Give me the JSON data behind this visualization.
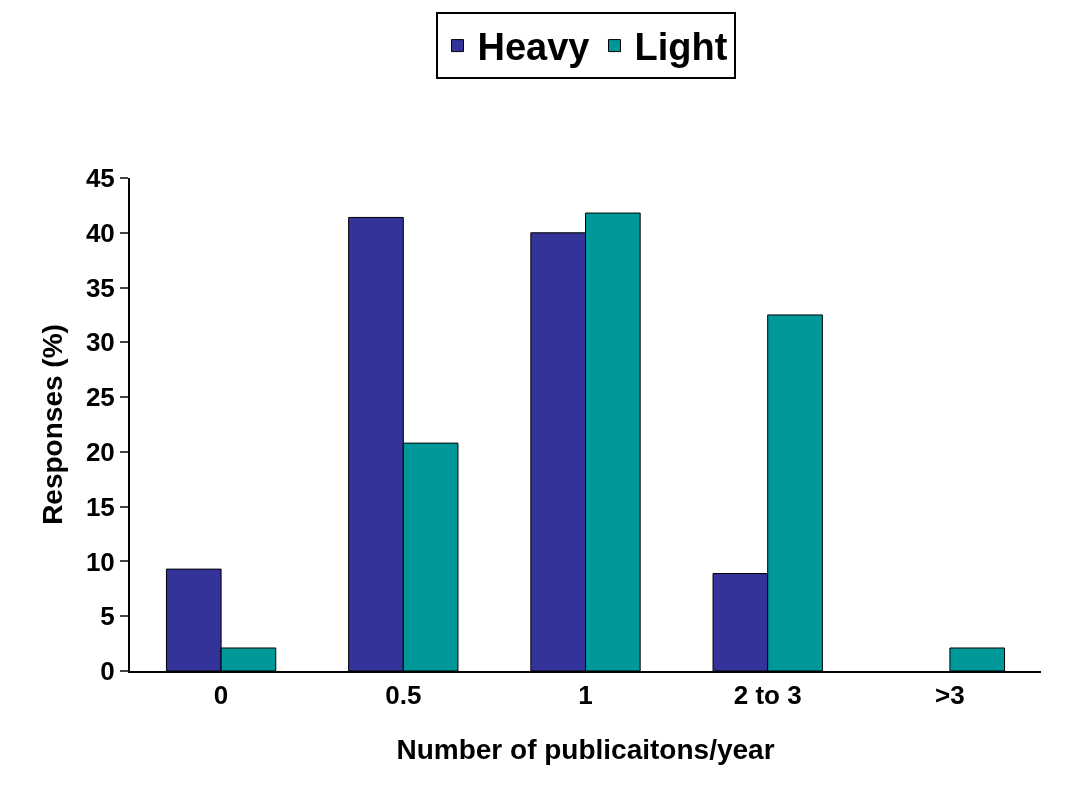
{
  "chart_data": {
    "type": "bar",
    "xlabel": "Number of publicaitons/year",
    "ylabel": "Responses (%)",
    "categories": [
      "0",
      "0.5",
      "1",
      "2 to 3",
      ">3"
    ],
    "series": [
      {
        "name": "Heavy",
        "color": "#333399",
        "values": [
          9.3,
          41.4,
          40,
          8.9,
          0
        ]
      },
      {
        "name": "Light",
        "color": "#009999",
        "values": [
          2.1,
          20.8,
          41.8,
          32.5,
          2.1
        ]
      }
    ],
    "ylim": [
      0,
      45
    ],
    "yticks": [
      0,
      5,
      10,
      15,
      20,
      25,
      30,
      35,
      40,
      45
    ],
    "grid": false,
    "legend": "top"
  }
}
